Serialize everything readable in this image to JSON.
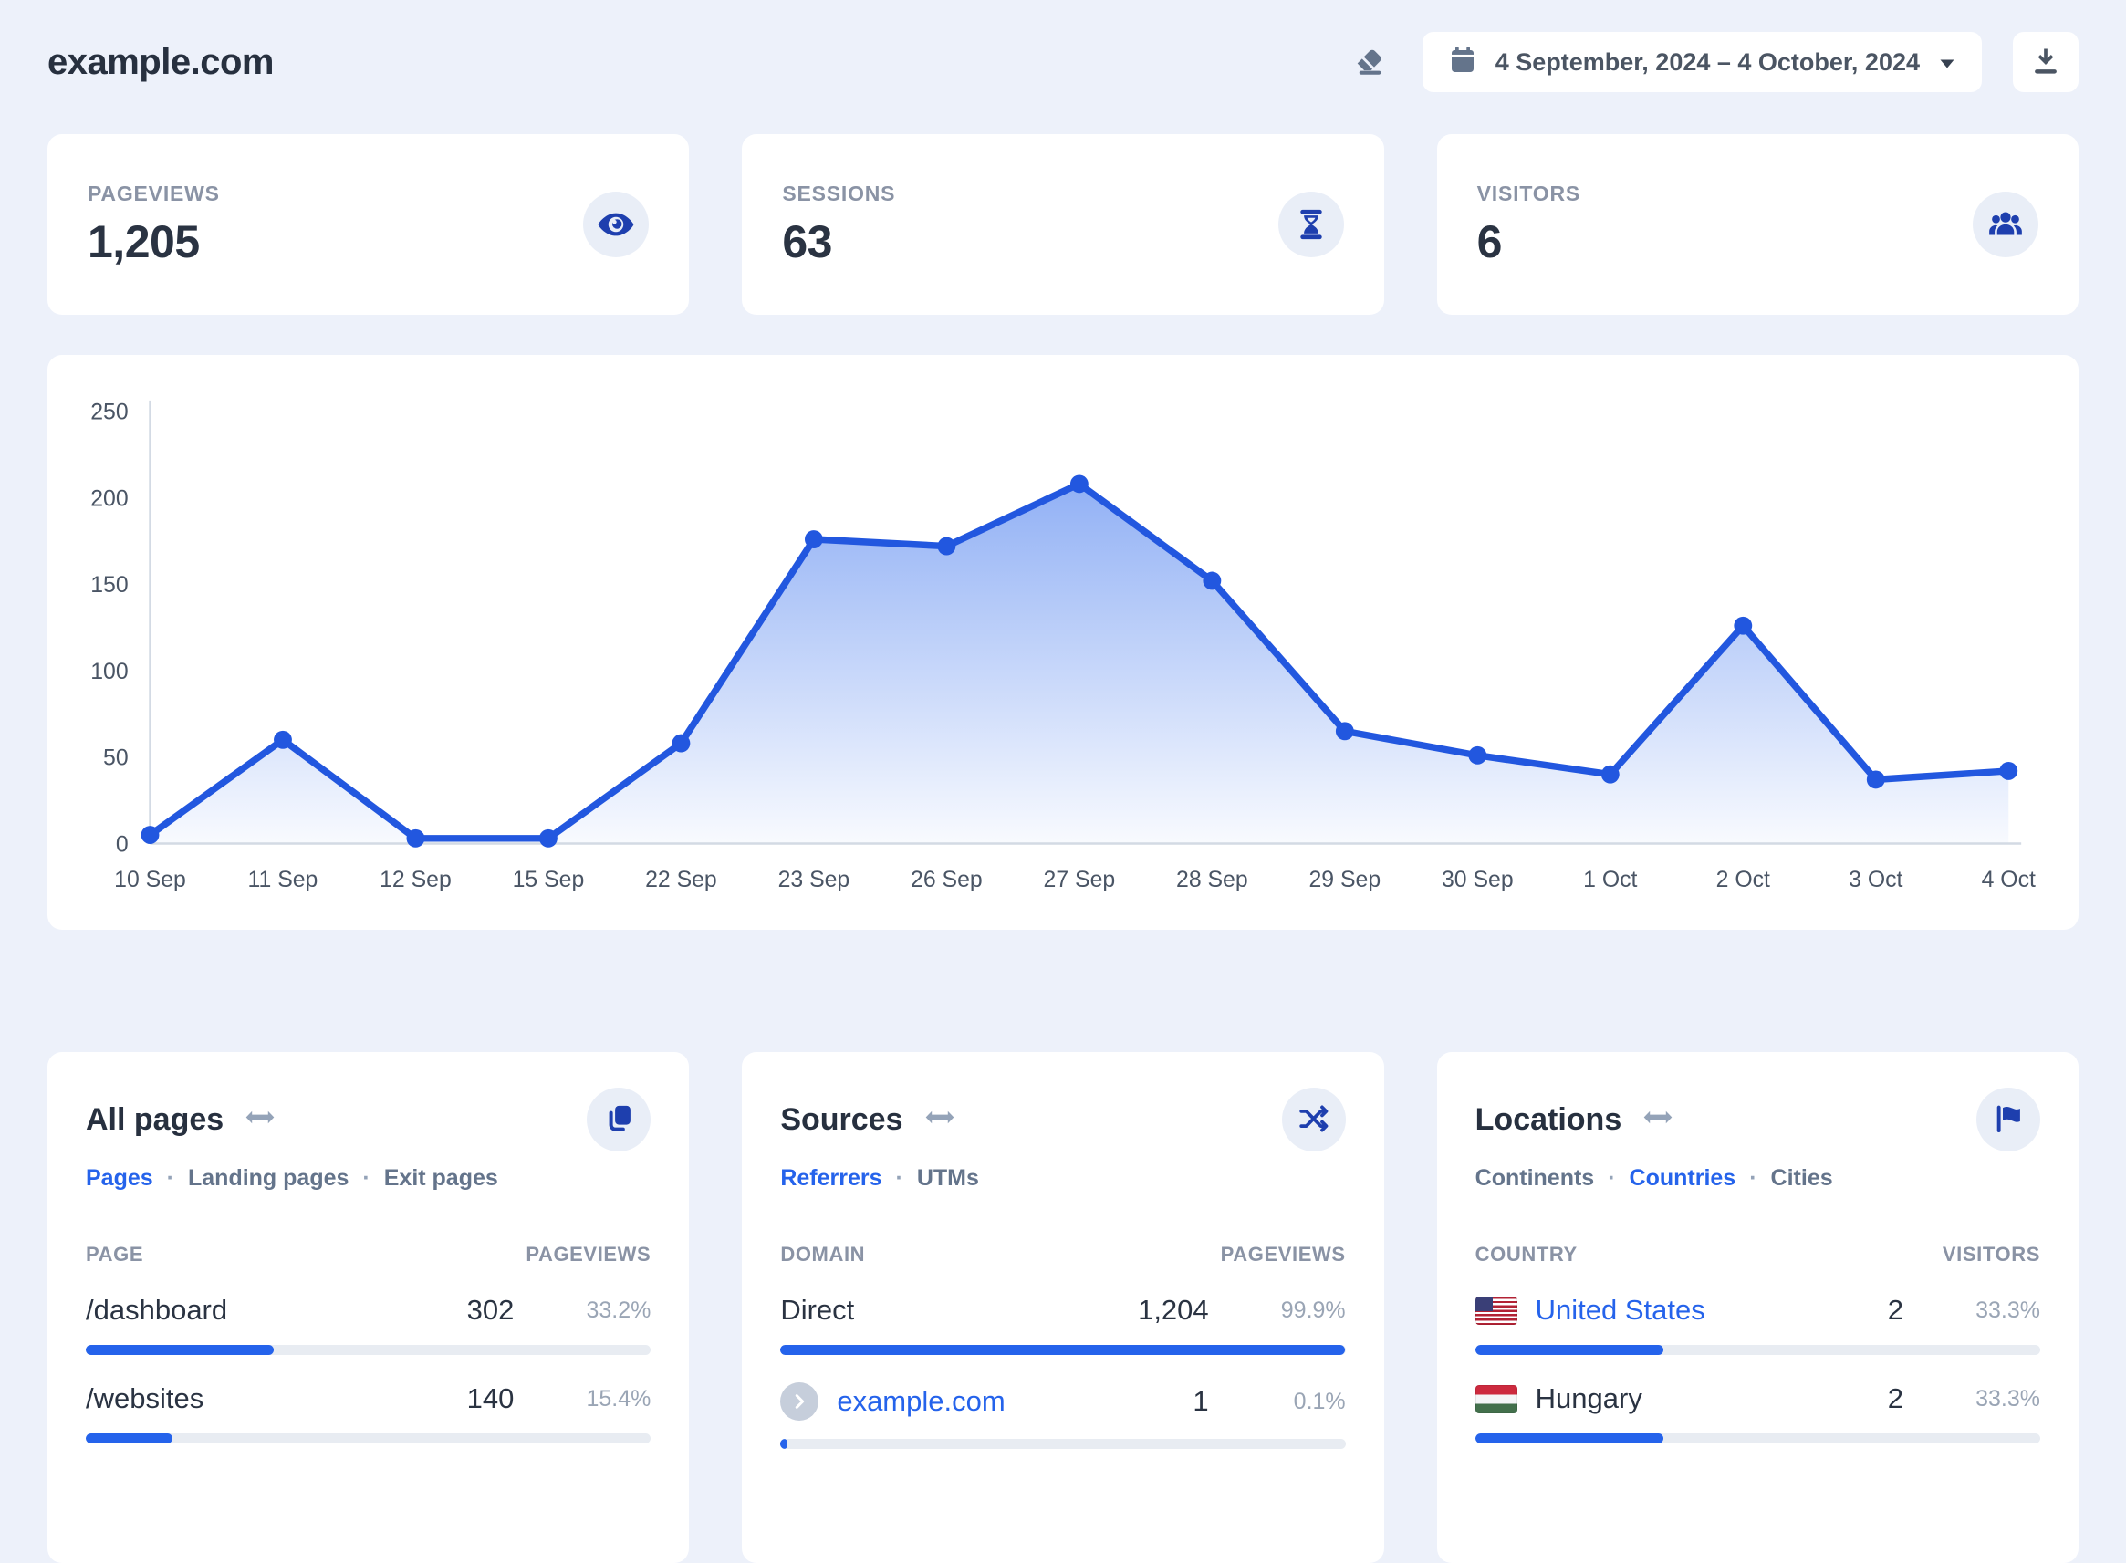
{
  "header": {
    "site_title": "example.com",
    "date_range": "4 September, 2024 – 4 October, 2024"
  },
  "colors": {
    "accent_blue": "#2563eb",
    "icon_blue": "#1e3fae",
    "chart_line": "#2257df",
    "label_gray": "#8a93a5",
    "page_background": "#edf1fa"
  },
  "stats": [
    {
      "label": "PAGEVIEWS",
      "value": "1,205",
      "icon": "eye-icon"
    },
    {
      "label": "SESSIONS",
      "value": "63",
      "icon": "hourglass-icon"
    },
    {
      "label": "VISITORS",
      "value": "6",
      "icon": "people-icon"
    }
  ],
  "chart_data": {
    "type": "area",
    "title": "",
    "xlabel": "",
    "ylabel": "",
    "x": [
      "10 Sep",
      "11 Sep",
      "12 Sep",
      "15 Sep",
      "22 Sep",
      "23 Sep",
      "26 Sep",
      "27 Sep",
      "28 Sep",
      "29 Sep",
      "30 Sep",
      "1 Oct",
      "2 Oct",
      "3 Oct",
      "4 Oct"
    ],
    "series": [
      {
        "name": "Pageviews",
        "values": [
          5,
          60,
          3,
          3,
          58,
          176,
          172,
          208,
          152,
          65,
          51,
          40,
          126,
          37,
          42
        ]
      }
    ],
    "ylim": [
      0,
      250
    ],
    "yticks": [
      0,
      50,
      100,
      150,
      200,
      250
    ],
    "grid": false,
    "legend": false,
    "line_color": "#2257df",
    "area_gradient": [
      "rgba(37,99,235,0.50)",
      "rgba(37,99,235,0.03)"
    ]
  },
  "pages_panel": {
    "title": "All pages",
    "tabs": [
      "Pages",
      "Landing pages",
      "Exit pages"
    ],
    "active_tab": "Pages",
    "columns": {
      "left": "PAGE",
      "right": "PAGEVIEWS"
    },
    "rows": [
      {
        "name": "/dashboard",
        "value": "302",
        "pct": "33.2%",
        "bar": 33.2
      },
      {
        "name": "/websites",
        "value": "140",
        "pct": "15.4%",
        "bar": 15.4
      }
    ]
  },
  "sources_panel": {
    "title": "Sources",
    "tabs": [
      "Referrers",
      "UTMs"
    ],
    "active_tab": "Referrers",
    "columns": {
      "left": "DOMAIN",
      "right": "PAGEVIEWS"
    },
    "rows": [
      {
        "name": "Direct",
        "value": "1,204",
        "pct": "99.9%",
        "bar": 99.9
      },
      {
        "name": "example.com",
        "value": "1",
        "pct": "0.1%",
        "bar": 1.2
      }
    ]
  },
  "locations_panel": {
    "title": "Locations",
    "tabs": [
      "Continents",
      "Countries",
      "Cities"
    ],
    "active_tab": "Countries",
    "columns": {
      "left": "COUNTRY",
      "right": "VISITORS"
    },
    "rows": [
      {
        "name": "United States",
        "value": "2",
        "pct": "33.3%",
        "bar": 33.3
      },
      {
        "name": "Hungary",
        "value": "2",
        "pct": "33.3%",
        "bar": 33.3
      }
    ]
  }
}
